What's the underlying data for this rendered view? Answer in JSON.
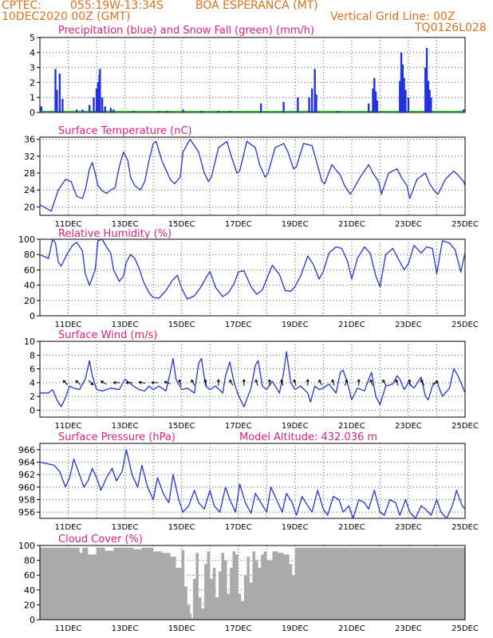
{
  "header": {
    "line1_left": "CPTEC:",
    "line1_coords": "055:19W-13:34S",
    "line1_station": "BOA ESPERANCA (MT)",
    "line2_left": "10DEC2020 00Z (GMT)",
    "line2_right": "Vertical Grid Line: 00Z",
    "line3_right": "TQ0126L028",
    "color": "#e07020"
  },
  "colors": {
    "title": "#e0207a",
    "line": "#2233dd",
    "snow": "#22aa22",
    "cloud": "#aaaaaa",
    "grid": "#555555",
    "wind_arrow": "#000000"
  },
  "x_axis": {
    "start_day": 10,
    "end_day": 25,
    "tick_labels": [
      "11DEC",
      "13DEC",
      "15DEC",
      "17DEC",
      "19DEC",
      "21DEC",
      "23DEC",
      "25DEC"
    ],
    "tick_days": [
      11,
      13,
      15,
      17,
      19,
      21,
      23,
      25
    ]
  },
  "chart_data": [
    {
      "type": "bar",
      "title": "Precipitation (blue) and Snow Fall (green) (mm/h)",
      "ylim": [
        0,
        5
      ],
      "yticks": [
        0,
        1,
        2,
        3,
        4,
        5
      ],
      "series": [
        {
          "name": "Precipitation",
          "color_key": "line",
          "values": [
            [
              10.05,
              0.4
            ],
            [
              10.55,
              2.9
            ],
            [
              10.6,
              1.5
            ],
            [
              10.7,
              2.6
            ],
            [
              10.8,
              0.9
            ],
            [
              11.3,
              0.2
            ],
            [
              11.5,
              0.2
            ],
            [
              11.75,
              0.5
            ],
            [
              11.9,
              1.0
            ],
            [
              12.0,
              1.6
            ],
            [
              12.05,
              2.0
            ],
            [
              12.1,
              2.5
            ],
            [
              12.12,
              2.9
            ],
            [
              12.2,
              1.0
            ],
            [
              12.3,
              0.4
            ],
            [
              12.5,
              0.3
            ],
            [
              12.6,
              0.2
            ],
            [
              13.3,
              0.1
            ],
            [
              14.2,
              0.1
            ],
            [
              14.5,
              0.1
            ],
            [
              15.05,
              0.2
            ],
            [
              15.7,
              0.1
            ],
            [
              16.3,
              0.1
            ],
            [
              16.7,
              0.1
            ],
            [
              17.8,
              0.6
            ],
            [
              18.6,
              0.7
            ],
            [
              19.1,
              1.0
            ],
            [
              19.5,
              1.0
            ],
            [
              19.6,
              1.6
            ],
            [
              19.7,
              2.9
            ],
            [
              19.75,
              1.2
            ],
            [
              20.5,
              0.1
            ],
            [
              21.6,
              0.6
            ],
            [
              21.75,
              1.6
            ],
            [
              21.8,
              2.3
            ],
            [
              21.85,
              1.4
            ],
            [
              21.9,
              0.8
            ],
            [
              22.7,
              2.1
            ],
            [
              22.75,
              4.0
            ],
            [
              22.8,
              3.2
            ],
            [
              22.85,
              2.3
            ],
            [
              22.9,
              1.5
            ],
            [
              23.0,
              1.0
            ],
            [
              23.6,
              3.0
            ],
            [
              23.65,
              4.3
            ],
            [
              23.7,
              2.1
            ],
            [
              23.75,
              1.5
            ],
            [
              23.8,
              1.0
            ],
            [
              24.95,
              0.2
            ]
          ]
        },
        {
          "name": "Snow Fall",
          "color_key": "snow",
          "values": []
        }
      ]
    },
    {
      "type": "line",
      "title": "Surface Temperature (nC)",
      "ylim": [
        18,
        36.5
      ],
      "yticks": [
        20,
        24,
        28,
        32,
        36
      ],
      "x": [
        10.0,
        10.4,
        10.65,
        10.75,
        10.9,
        11.1,
        11.3,
        11.5,
        11.6,
        11.75,
        11.85,
        11.95,
        12.05,
        12.2,
        12.35,
        12.5,
        12.65,
        12.8,
        12.95,
        13.1,
        13.2,
        13.35,
        13.55,
        13.7,
        13.85,
        14.0,
        14.1,
        14.3,
        14.6,
        14.75,
        14.95,
        15.05,
        15.3,
        15.6,
        15.8,
        15.95,
        16.05,
        16.3,
        16.6,
        16.75,
        16.95,
        17.05,
        17.3,
        17.6,
        17.75,
        17.95,
        18.05,
        18.3,
        18.6,
        18.75,
        18.95,
        19.05,
        19.3,
        19.6,
        19.75,
        19.95,
        20.05,
        20.3,
        20.6,
        20.75,
        20.95,
        21.05,
        21.3,
        21.6,
        21.75,
        21.95,
        22.05,
        22.3,
        22.6,
        22.75,
        22.95,
        23.05,
        23.3,
        23.6,
        23.75,
        23.95,
        24.05,
        24.3,
        24.6,
        24.75,
        24.95,
        25.0
      ],
      "y": [
        20.5,
        19.0,
        24.0,
        25.0,
        26.5,
        26.0,
        22.5,
        22.0,
        24.0,
        29.0,
        30.5,
        28.0,
        25.0,
        23.8,
        23.2,
        24.0,
        24.5,
        29.5,
        33.0,
        31.0,
        27.0,
        25.0,
        24.0,
        26.0,
        31.0,
        35.0,
        35.5,
        31.0,
        26.5,
        25.5,
        27.0,
        33.0,
        36.0,
        33.0,
        28.0,
        26.0,
        27.0,
        34.0,
        35.5,
        32.0,
        28.0,
        28.5,
        35.5,
        34.0,
        30.0,
        27.0,
        28.0,
        34.0,
        35.0,
        33.0,
        29.0,
        29.5,
        35.0,
        34.5,
        31.0,
        26.0,
        25.5,
        30.0,
        27.5,
        25.0,
        23.0,
        24.0,
        27.0,
        30.0,
        28.0,
        26.0,
        23.0,
        28.0,
        29.0,
        27.0,
        25.0,
        22.0,
        26.5,
        28.0,
        25.5,
        23.5,
        23.0,
        26.5,
        28.5,
        27.5,
        26.0,
        25.0
      ]
    },
    {
      "type": "line",
      "title": "Relative Humidity (%)",
      "ylim": [
        0,
        100
      ],
      "yticks": [
        0,
        20,
        40,
        60,
        80,
        100
      ],
      "x": [
        10.0,
        10.3,
        10.45,
        10.55,
        10.65,
        10.75,
        10.95,
        11.15,
        11.3,
        11.5,
        11.6,
        11.75,
        11.95,
        12.05,
        12.2,
        12.35,
        12.5,
        12.6,
        12.8,
        12.95,
        13.05,
        13.2,
        13.35,
        13.5,
        13.65,
        13.85,
        14.0,
        14.2,
        14.45,
        14.65,
        14.85,
        15.0,
        15.2,
        15.45,
        15.65,
        15.85,
        16.0,
        16.2,
        16.45,
        16.65,
        16.85,
        17.0,
        17.2,
        17.45,
        17.65,
        17.85,
        18.0,
        18.2,
        18.45,
        18.65,
        18.85,
        19.0,
        19.2,
        19.45,
        19.65,
        19.85,
        20.0,
        20.2,
        20.45,
        20.65,
        20.85,
        21.0,
        21.2,
        21.45,
        21.65,
        21.85,
        22.0,
        22.2,
        22.45,
        22.65,
        22.85,
        23.0,
        23.2,
        23.45,
        23.65,
        23.85,
        24.0,
        24.2,
        24.45,
        24.65,
        24.85,
        25.0
      ],
      "y": [
        80,
        75,
        100,
        95,
        70,
        65,
        80,
        92,
        96,
        85,
        55,
        40,
        60,
        98,
        100,
        90,
        82,
        60,
        45,
        52,
        70,
        80,
        75,
        62,
        45,
        30,
        24,
        23,
        33,
        45,
        53,
        36,
        22,
        26,
        36,
        49,
        58,
        37,
        25,
        30,
        42,
        57,
        59,
        38,
        28,
        34,
        48,
        66,
        54,
        33,
        32,
        38,
        52,
        78,
        67,
        48,
        58,
        82,
        90,
        88,
        72,
        48,
        75,
        90,
        82,
        52,
        38,
        80,
        88,
        74,
        60,
        68,
        92,
        82,
        90,
        88,
        55,
        98,
        95,
        86,
        57,
        83
      ]
    },
    {
      "type": "line",
      "title": "Surface Wind (m/s)",
      "ylim": [
        -1,
        10
      ],
      "yticks": [
        0,
        2,
        4,
        6,
        8,
        10
      ],
      "x": [
        10.0,
        10.3,
        10.45,
        10.6,
        10.75,
        10.9,
        11.05,
        11.2,
        11.4,
        11.6,
        11.75,
        11.85,
        12.0,
        12.2,
        12.5,
        12.8,
        13.0,
        13.3,
        13.5,
        13.7,
        13.85,
        14.0,
        14.2,
        14.45,
        14.6,
        14.7,
        14.8,
        15.0,
        15.2,
        15.45,
        15.6,
        15.7,
        15.85,
        16.0,
        16.2,
        16.45,
        16.55,
        16.7,
        16.85,
        17.0,
        17.2,
        17.45,
        17.6,
        17.7,
        17.85,
        18.0,
        18.2,
        18.45,
        18.6,
        18.7,
        18.85,
        19.0,
        19.2,
        19.45,
        19.55,
        19.7,
        19.85,
        20.0,
        20.2,
        20.45,
        20.6,
        20.7,
        20.85,
        21.0,
        21.2,
        21.45,
        21.6,
        21.7,
        21.85,
        22.0,
        22.2,
        22.45,
        22.6,
        22.7,
        22.85,
        23.0,
        23.2,
        23.45,
        23.6,
        23.7,
        23.85,
        24.0,
        24.2,
        24.45,
        24.6,
        24.75,
        24.85,
        25.0
      ],
      "y": [
        2.5,
        2.5,
        3.0,
        1.5,
        0.5,
        1.8,
        3.5,
        3.2,
        3.0,
        4.5,
        7.2,
        5.0,
        3.0,
        2.8,
        3.2,
        3.0,
        4.5,
        3.5,
        3.0,
        2.8,
        3.5,
        3.0,
        3.5,
        2.8,
        5.5,
        7.5,
        4.5,
        3.0,
        3.2,
        2.5,
        6.8,
        7.5,
        3.5,
        3.0,
        3.5,
        2.5,
        5.0,
        7.0,
        4.0,
        2.2,
        0.5,
        3.2,
        6.5,
        7.2,
        3.5,
        3.0,
        4.2,
        2.5,
        5.5,
        8.5,
        4.0,
        3.0,
        3.5,
        2.5,
        1.2,
        3.5,
        3.0,
        3.2,
        3.8,
        2.5,
        5.5,
        5.8,
        4.0,
        1.5,
        3.2,
        2.8,
        4.5,
        5.5,
        2.0,
        0.8,
        3.5,
        3.8,
        5.0,
        4.5,
        3.0,
        4.0,
        3.2,
        4.8,
        2.0,
        1.5,
        3.5,
        4.2,
        2.0,
        3.2,
        6.0,
        5.0,
        4.0,
        2.5
      ]
    },
    {
      "type": "line",
      "title": "Surface Pressure (hPa)",
      "annotation": "Model Altitude: 432.036 m",
      "ylim": [
        955,
        967
      ],
      "yticks": [
        956,
        958,
        960,
        962,
        964,
        966
      ],
      "x": [
        10.0,
        10.3,
        10.5,
        10.7,
        10.9,
        11.05,
        11.2,
        11.4,
        11.55,
        11.7,
        11.85,
        12.0,
        12.15,
        12.35,
        12.55,
        12.7,
        12.9,
        13.05,
        13.25,
        13.45,
        13.6,
        13.8,
        14.0,
        14.15,
        14.35,
        14.55,
        14.7,
        14.9,
        15.05,
        15.25,
        15.45,
        15.6,
        15.8,
        16.0,
        16.15,
        16.35,
        16.55,
        16.7,
        16.9,
        17.05,
        17.25,
        17.45,
        17.6,
        17.8,
        18.0,
        18.15,
        18.35,
        18.55,
        18.7,
        18.9,
        19.05,
        19.25,
        19.45,
        19.6,
        19.8,
        20.0,
        20.15,
        20.35,
        20.55,
        20.7,
        20.9,
        21.05,
        21.25,
        21.45,
        21.6,
        21.8,
        22.0,
        22.15,
        22.35,
        22.55,
        22.7,
        22.9,
        23.05,
        23.25,
        23.45,
        23.6,
        23.8,
        24.0,
        24.15,
        24.35,
        24.55,
        24.7,
        24.9,
        25.0
      ],
      "y": [
        964.0,
        963.7,
        963.5,
        962.5,
        960.0,
        961.5,
        964.5,
        962.0,
        960.0,
        961.0,
        963.0,
        961.5,
        959.5,
        961.5,
        963.0,
        961.0,
        962.5,
        966.0,
        962.0,
        960.0,
        963.5,
        960.0,
        958.0,
        961.5,
        959.0,
        957.5,
        962.0,
        958.0,
        956.0,
        957.0,
        959.5,
        957.5,
        956.5,
        959.5,
        957.0,
        956.0,
        960.0,
        958.0,
        956.0,
        960.5,
        957.5,
        955.8,
        959.0,
        957.5,
        956.0,
        960.0,
        958.0,
        956.0,
        959.0,
        957.5,
        955.5,
        958.5,
        957.0,
        956.0,
        959.5,
        956.5,
        955.5,
        958.5,
        958.0,
        956.0,
        957.0,
        955.0,
        958.0,
        957.5,
        956.5,
        959.5,
        956.0,
        955.5,
        958.0,
        957.5,
        955.5,
        958.0,
        956.0,
        955.0,
        957.0,
        956.5,
        955.5,
        958.0,
        956.0,
        955.0,
        957.0,
        959.5,
        957.0,
        956.5
      ]
    },
    {
      "type": "bar",
      "title": "Cloud Cover (%)",
      "ylim": [
        0,
        100
      ],
      "yticks": [
        0,
        20,
        40,
        60,
        80,
        100
      ],
      "series": [
        {
          "name": "Cloud Cover",
          "color_key": "cloud",
          "x": [
            10.0,
            10.5,
            11.0,
            11.4,
            11.5,
            11.7,
            12.0,
            12.3,
            12.6,
            13.0,
            13.3,
            13.6,
            14.0,
            14.3,
            14.6,
            14.8,
            15.0,
            15.1,
            15.2,
            15.3,
            15.35,
            15.4,
            15.5,
            15.6,
            15.7,
            15.8,
            15.9,
            16.0,
            16.1,
            16.2,
            16.3,
            16.4,
            16.5,
            16.6,
            16.7,
            16.8,
            16.9,
            17.0,
            17.1,
            17.2,
            17.3,
            17.4,
            17.5,
            17.6,
            17.7,
            17.8,
            17.9,
            18.0,
            18.2,
            18.4,
            18.6,
            18.8,
            18.9,
            19.0,
            19.5,
            20.0,
            21.0,
            22.0,
            23.0,
            24.0,
            24.5,
            25.0
          ],
          "values": [
            97,
            97,
            97,
            90,
            97,
            88,
            97,
            93,
            97,
            97,
            95,
            97,
            92,
            90,
            85,
            70,
            94,
            45,
            20,
            8,
            2,
            55,
            90,
            30,
            15,
            75,
            92,
            55,
            70,
            30,
            65,
            90,
            80,
            35,
            70,
            92,
            88,
            35,
            25,
            60,
            85,
            50,
            92,
            80,
            70,
            88,
            92,
            80,
            92,
            90,
            88,
            75,
            60,
            97,
            97,
            97,
            97,
            97,
            97,
            97,
            97,
            97
          ]
        }
      ]
    }
  ],
  "wind_arrows": {
    "days": [
      10.9,
      11.35,
      11.8,
      12.25,
      12.7,
      13.15,
      13.6,
      14.05,
      14.5,
      14.95,
      15.4,
      15.85,
      16.3,
      16.75,
      17.2,
      17.65,
      18.1,
      18.55,
      19.0,
      19.45,
      19.9,
      20.35,
      20.8,
      21.25,
      21.7,
      22.15,
      22.6,
      23.05,
      23.5,
      23.95
    ],
    "directions_deg": [
      135,
      140,
      -45,
      150,
      180,
      180,
      170,
      180,
      160,
      110,
      120,
      100,
      90,
      120,
      90,
      110,
      90,
      110,
      110,
      90,
      120,
      110,
      70,
      90,
      110,
      120,
      110,
      100,
      120,
      30
    ]
  },
  "panel_titles": [
    {
      "text": "Precipitation (blue) and Snow Fall (green) (mm/h)"
    },
    {
      "text": "Surface Temperature (nC)"
    },
    {
      "text": "Relative Humidity (%)"
    },
    {
      "text": "Surface Wind (m/s)"
    },
    {
      "text": "Surface Pressure (hPa)"
    },
    {
      "text": "Cloud Cover (%)"
    }
  ]
}
